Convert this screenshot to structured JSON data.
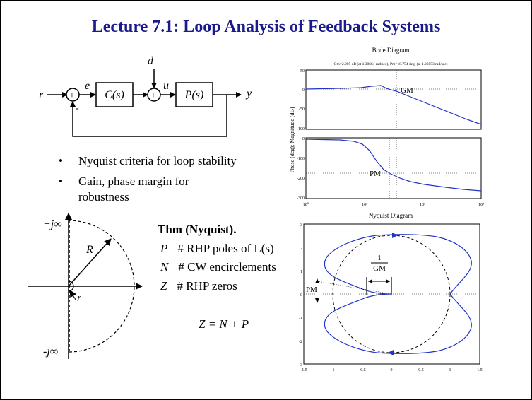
{
  "title": "Lecture 7.1: Loop Analysis of Feedback Systems",
  "block_diagram": {
    "r": "r",
    "e": "e",
    "d": "d",
    "u": "u",
    "y": "y",
    "plus": "+",
    "minus": "-",
    "controller": "C(s)",
    "plant": "P(s)"
  },
  "bullets": [
    "Nyquist criteria for loop stability",
    "Gain, phase margin for robustness"
  ],
  "contour": {
    "top_label": "+j∞",
    "bottom_label": "-j∞",
    "big_radius": "R",
    "small_radius": "r"
  },
  "theorem": {
    "heading": "Thm (Nyquist).",
    "rows": [
      {
        "sym": "P",
        "text": "# RHP poles of L(s)"
      },
      {
        "sym": "N",
        "text": "# CW encirclements"
      },
      {
        "sym": "Z",
        "text": "# RHP zeros"
      }
    ],
    "formula": "Z = N + P"
  },
  "bode": {
    "title": "Bode Diagram",
    "subtitle": "Gm=2.005 dB (at 1.30661 rad/sec), Pm=18.754 deg. (at 1.26853 rad/sec)",
    "ylabel": "Phase (deg); Magnitude (dB)",
    "gm_label": "GM",
    "pm_label": "PM",
    "mag_ticks": [
      "50",
      "0",
      "-50",
      "-100"
    ],
    "phase_ticks": [
      "0",
      "-100",
      "-200",
      "-300"
    ],
    "x_ticks": [
      "10⁰",
      "10¹",
      "10²",
      "10³"
    ]
  },
  "nyquist": {
    "title": "Nyquist Diagram",
    "gm_num": "1",
    "gm_den": "GM",
    "pm_label": "PM",
    "x_ticks": [
      "-1.5",
      "-1",
      "-0.5",
      "0",
      "0.5",
      "1",
      "1.5"
    ],
    "y_ticks": [
      "3",
      "2",
      "1",
      "0",
      "-1",
      "-2",
      "-3"
    ]
  },
  "colors": {
    "title": "#1a1a8c",
    "curve": "#2233cc"
  }
}
